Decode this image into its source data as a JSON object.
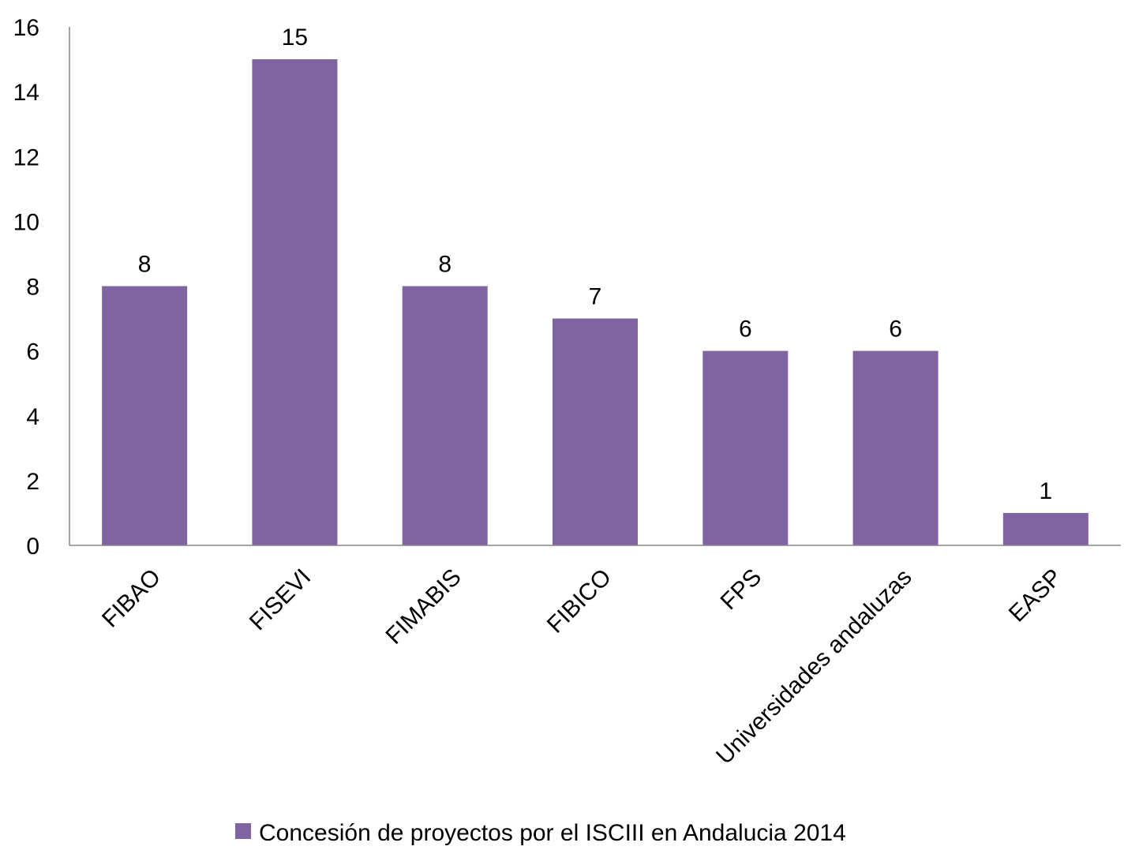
{
  "chart_data": {
    "type": "bar",
    "categories": [
      "FIBAO",
      "FISEVI",
      "FIMABIS",
      "FIBICO",
      "FPS",
      "Universidades andaluzas",
      "EASP"
    ],
    "series": [
      {
        "name": "Concesión de proyectos por el ISCIII en Andalucia 2014",
        "values": [
          8,
          15,
          8,
          7,
          6,
          6,
          1
        ]
      }
    ],
    "ylim": [
      0,
      16
    ],
    "yticks": [
      0,
      2,
      4,
      6,
      8,
      10,
      12,
      14,
      16
    ],
    "ytick_labels": [
      "0",
      "2",
      "4",
      "6",
      "8",
      "10",
      "12",
      "14",
      "16"
    ],
    "data_labels": [
      "8",
      "15",
      "8",
      "7",
      "6",
      "6",
      "1"
    ],
    "grid": false,
    "legend": "bottom",
    "colors": {
      "bar": "#8064A2",
      "axis": "#868686"
    }
  }
}
